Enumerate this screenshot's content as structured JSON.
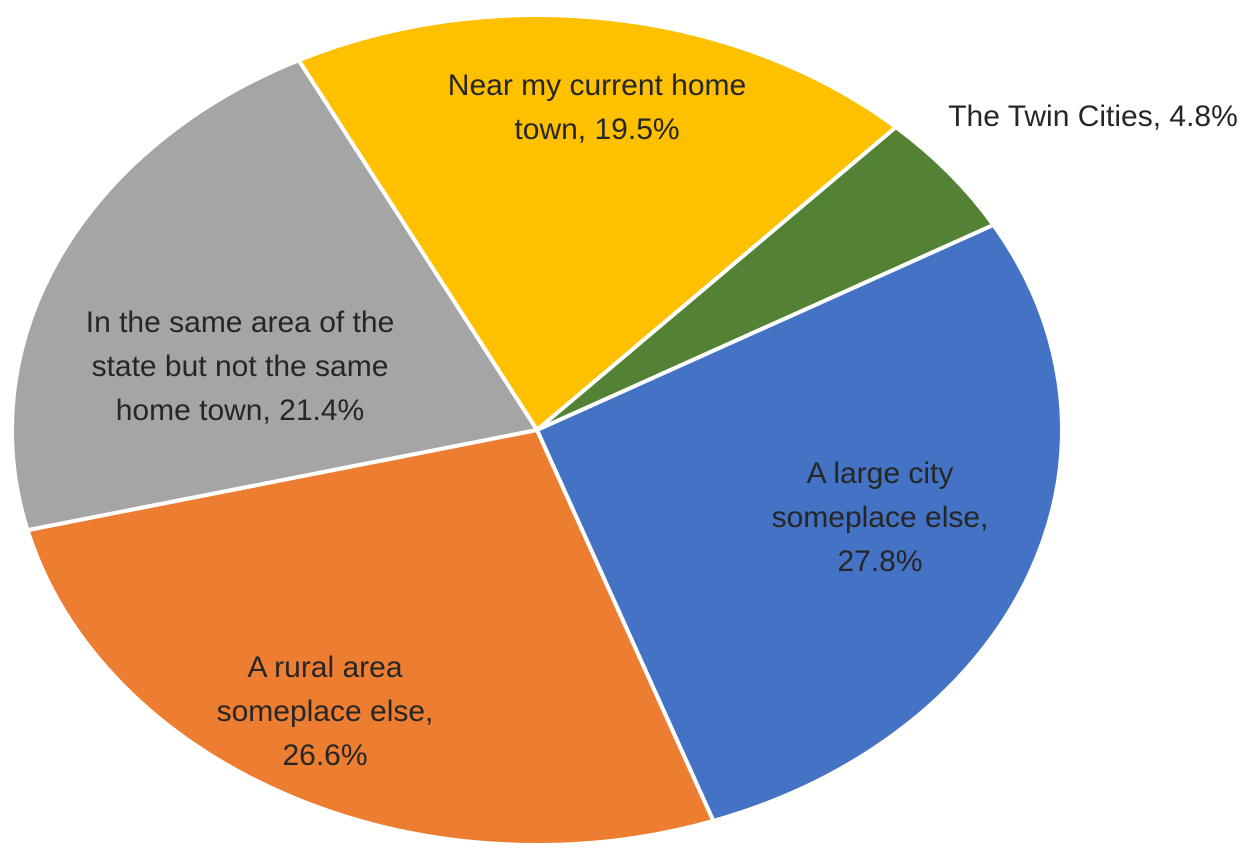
{
  "chart_data": {
    "type": "pie",
    "categories": [
      "Near my current home town,",
      "The Twin Cities,",
      "A large city someplace else,",
      "A rural area someplace else,",
      "In the same area of the state but not the same home town,"
    ],
    "values": [
      19.5,
      4.8,
      27.8,
      26.6,
      21.4
    ],
    "value_labels": [
      "19.5%",
      "4.8%",
      "27.8%",
      "26.6%",
      "21.4%"
    ],
    "colors": [
      "#ffc000",
      "#548235",
      "#4472c4",
      "#ed7d31",
      "#a5a5a5"
    ]
  }
}
